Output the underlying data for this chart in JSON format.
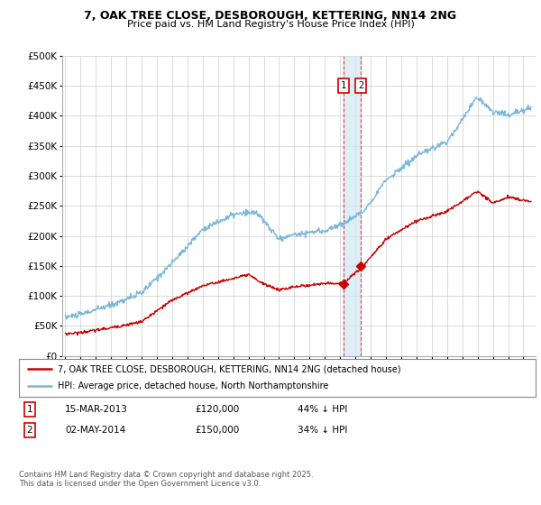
{
  "title_line1": "7, OAK TREE CLOSE, DESBOROUGH, KETTERING, NN14 2NG",
  "title_line2": "Price paid vs. HM Land Registry's House Price Index (HPI)",
  "ylim": [
    0,
    500000
  ],
  "yticks": [
    0,
    50000,
    100000,
    150000,
    200000,
    250000,
    300000,
    350000,
    400000,
    450000,
    500000
  ],
  "ytick_labels": [
    "£0",
    "£50K",
    "£100K",
    "£150K",
    "£200K",
    "£250K",
    "£300K",
    "£350K",
    "£400K",
    "£450K",
    "£500K"
  ],
  "hpi_color": "#7ab8d9",
  "price_color": "#cc0000",
  "sale1_date": 2013.21,
  "sale1_price": 120000,
  "sale1_label": "1",
  "sale2_date": 2014.34,
  "sale2_price": 150000,
  "sale2_label": "2",
  "vline_color": "#dd4444",
  "shade_color": "#d0e8f5",
  "legend_line1": "7, OAK TREE CLOSE, DESBOROUGH, KETTERING, NN14 2NG (detached house)",
  "legend_line2": "HPI: Average price, detached house, North Northamptonshire",
  "footnote_line1": "Contains HM Land Registry data © Crown copyright and database right 2025.",
  "footnote_line2": "This data is licensed under the Open Government Licence v3.0.",
  "table_row1": [
    "1",
    "15-MAR-2013",
    "£120,000",
    "44% ↓ HPI"
  ],
  "table_row2": [
    "2",
    "02-MAY-2014",
    "£150,000",
    "34% ↓ HPI"
  ],
  "bg_color": "#ffffff",
  "grid_color": "#cccccc",
  "box_edge_color": "#cc0000",
  "anno_y": 450000,
  "xlim_left": 1994.8,
  "xlim_right": 2025.8
}
